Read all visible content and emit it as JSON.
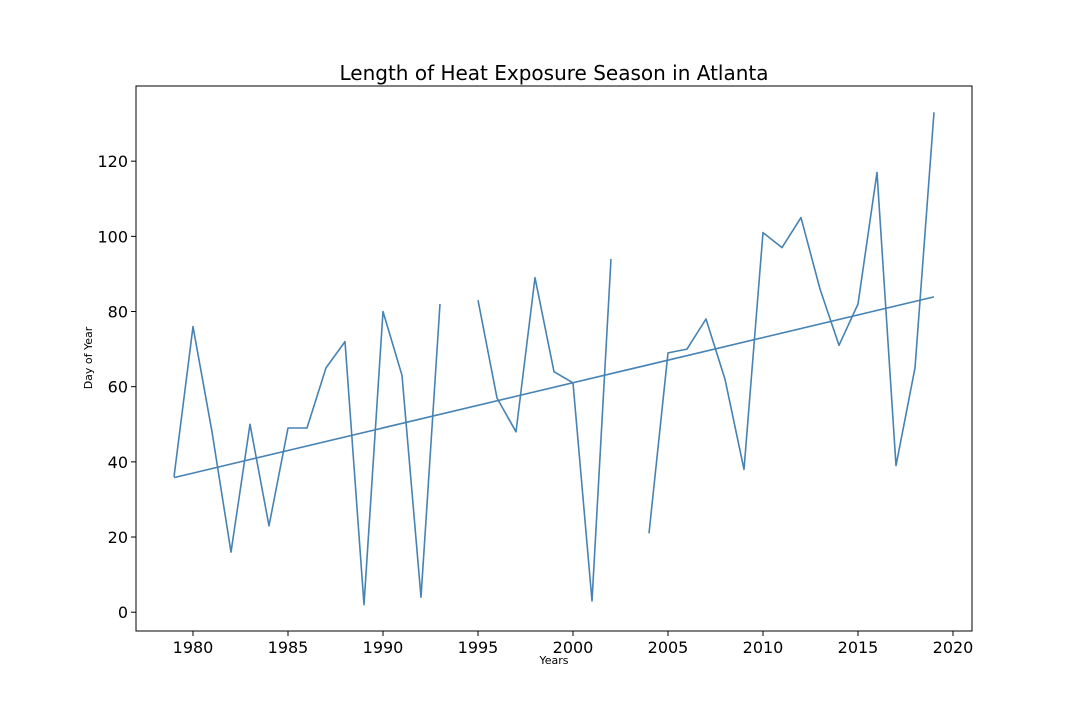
{
  "chart_data": {
    "type": "line",
    "title": "Length of Heat Exposure Season in Atlanta",
    "xlabel": "Years",
    "ylabel": "Day of Year",
    "xlim": [
      1977,
      2021
    ],
    "ylim": [
      -5,
      140
    ],
    "xticks": [
      1980,
      1985,
      1990,
      1995,
      2000,
      2005,
      2010,
      2015,
      2020
    ],
    "yticks": [
      0,
      20,
      40,
      60,
      80,
      100,
      120
    ],
    "grid": false,
    "line_color": "#4682b4",
    "series": [
      {
        "x": [
          1979,
          1980,
          1981,
          1982,
          1983,
          1984,
          1985,
          1986,
          1987,
          1988,
          1989,
          1990,
          1991,
          1992,
          1993,
          1994,
          1995,
          1996,
          1997,
          1998,
          1999,
          2000,
          2001,
          2002,
          2003,
          2004,
          2005,
          2006,
          2007,
          2008,
          2009,
          2010,
          2011,
          2012,
          2013,
          2014,
          2015,
          2016,
          2017,
          2018,
          2019
        ],
        "y": [
          36,
          76,
          48,
          16,
          50,
          23,
          49,
          49,
          65,
          72,
          2,
          80,
          63,
          4,
          82,
          null,
          83,
          57,
          48,
          89,
          64,
          61,
          3,
          94,
          null,
          21,
          69,
          70,
          78,
          62,
          38,
          101,
          97,
          105,
          86,
          71,
          82,
          117,
          39,
          65,
          133
        ]
      },
      {
        "x": [
          1979,
          2019
        ],
        "y": [
          35.8,
          83.9
        ]
      }
    ]
  }
}
